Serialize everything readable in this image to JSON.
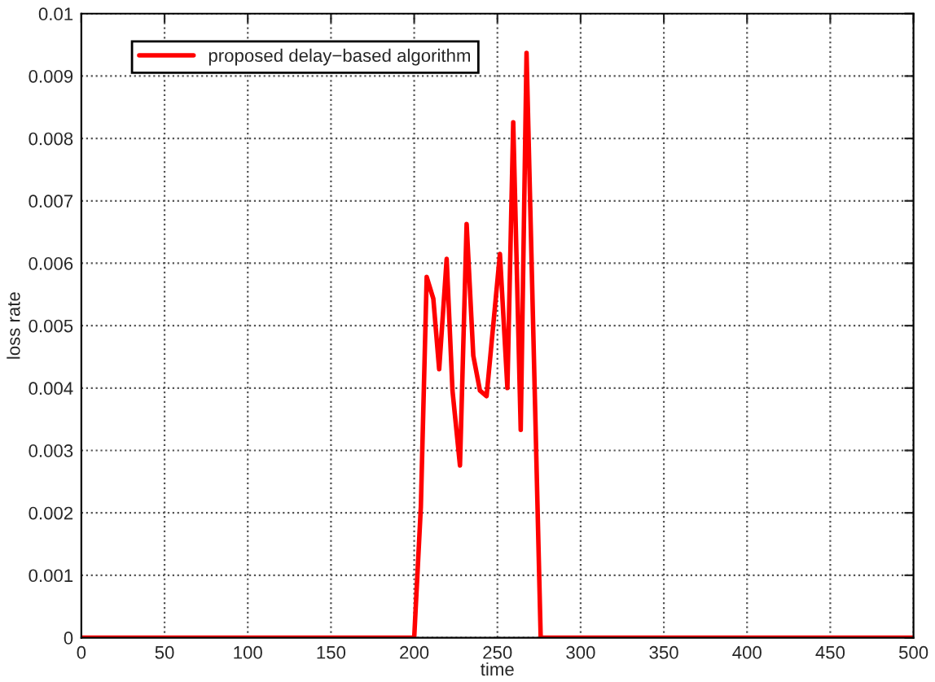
{
  "chart_data": {
    "type": "line",
    "xlabel": "time",
    "ylabel": "loss rate",
    "xlim": [
      0,
      500
    ],
    "ylim": [
      0,
      0.01
    ],
    "xticks": [
      0,
      50,
      100,
      150,
      200,
      250,
      300,
      350,
      400,
      450,
      500
    ],
    "yticks": [
      0,
      0.001,
      0.002,
      0.003,
      0.004,
      0.005,
      0.006,
      0.007,
      0.008,
      0.009,
      0.01
    ],
    "grid": true,
    "legend": "top left",
    "line_style": "solid",
    "series": [
      {
        "name": "proposed delay−based algorithm",
        "color": "#ff0000",
        "x": [
          0,
          200,
          204,
          207.5,
          211.5,
          215,
          219.5,
          223,
          227.5,
          231.5,
          235.5,
          239.5,
          243.5,
          251.5,
          256,
          259.5,
          264,
          267.5,
          276,
          500
        ],
        "values": [
          0,
          0,
          0.0021,
          0.00578,
          0.00543,
          0.0043,
          0.00607,
          0.00396,
          0.00276,
          0.00663,
          0.00452,
          0.00396,
          0.00387,
          0.00615,
          0.004,
          0.00826,
          0.00333,
          0.00937,
          0,
          0
        ]
      }
    ]
  }
}
